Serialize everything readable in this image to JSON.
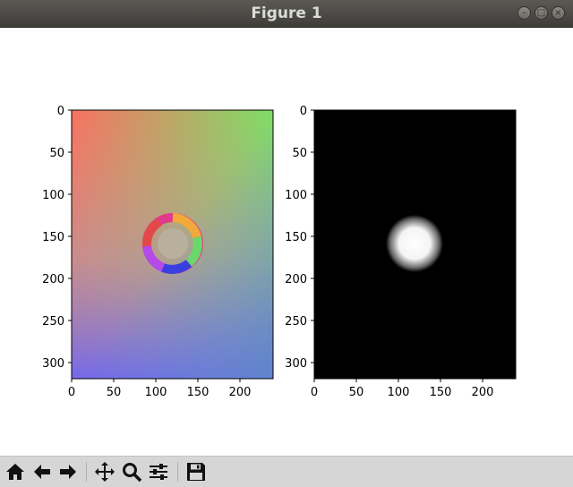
{
  "window": {
    "title": "Figure 1"
  },
  "axes_left": {
    "yticks": [
      "0",
      "50",
      "100",
      "150",
      "200",
      "250",
      "300"
    ],
    "xticks": [
      "0",
      "50",
      "100",
      "150",
      "200"
    ]
  },
  "axes_right": {
    "yticks": [
      "0",
      "50",
      "100",
      "150",
      "200",
      "250",
      "300"
    ],
    "xticks": [
      "0",
      "50",
      "100",
      "150",
      "200"
    ]
  },
  "toolbar": {
    "items": [
      "home-icon",
      "back-arrow-icon",
      "forward-arrow-icon",
      "pan-icon",
      "zoom-icon",
      "configure-subplots-icon",
      "save-icon"
    ]
  }
}
